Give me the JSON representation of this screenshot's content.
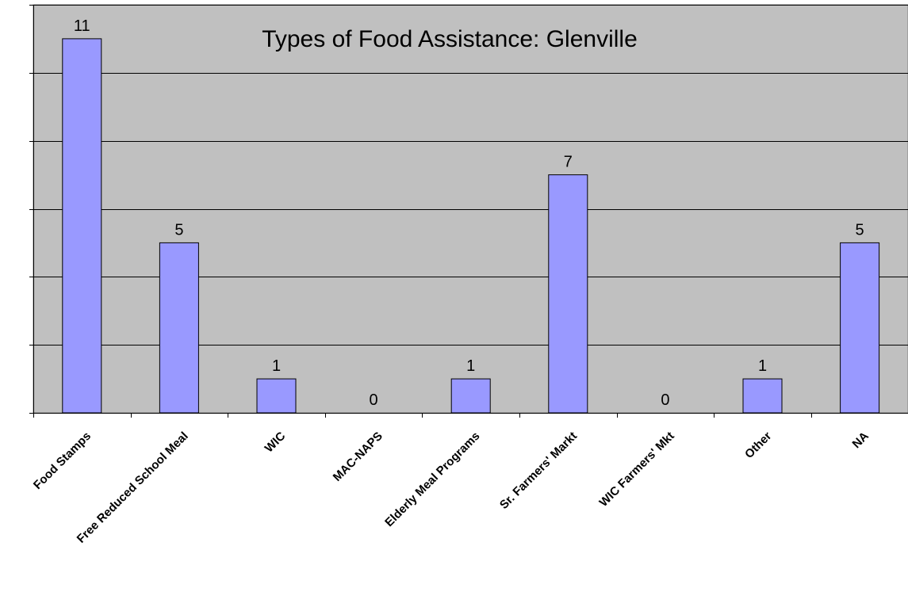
{
  "chart_data": {
    "type": "bar",
    "title": "Types of Food Assistance: Glenville",
    "xlabel": "",
    "ylabel": "",
    "categories": [
      "Food Stamps",
      "Free Reduced School Meal",
      "WIC",
      "MAC-NAPS",
      "Elderly Meal Programs",
      "Sr. Farmers' Markt",
      "WIC Farmers' Mkt",
      "Other",
      "NA"
    ],
    "values": [
      11,
      5,
      1,
      0,
      1,
      7,
      0,
      1,
      5
    ],
    "ylim": [
      0,
      12
    ],
    "ytick_step": 2,
    "y_tick_labels_visible": false,
    "data_labels": true,
    "grid": true,
    "legend": false,
    "colors": {
      "plot_background": "#c0c0c0",
      "bar_fill": "#9999ff",
      "bar_stroke": "#000000",
      "gridline": "#000000"
    }
  }
}
